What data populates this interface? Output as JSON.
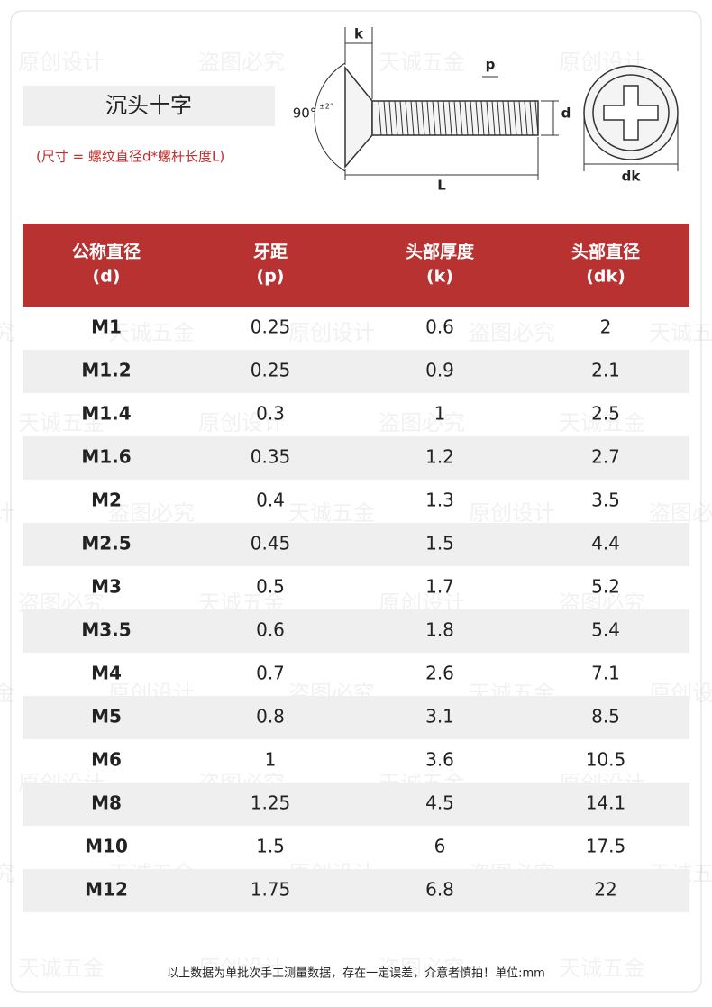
{
  "header": {
    "title": "沉头十字",
    "subtitle": "(尺寸 = 螺纹直径d*螺杆长度L)"
  },
  "diagram": {
    "angle": "90°",
    "tolerance": "±2°",
    "k": "k",
    "p": "p",
    "d": "d",
    "L": "L",
    "dk": "dk"
  },
  "watermarks": [
    "原创设计",
    "盗图必究",
    "天诚五金"
  ],
  "table": {
    "headers": [
      [
        "公称直径",
        "(d)"
      ],
      [
        "牙距",
        "(p)"
      ],
      [
        "头部厚度",
        "(k)"
      ],
      [
        "头部直径",
        "(dk)"
      ]
    ],
    "rows": [
      [
        "M1",
        "0.25",
        "0.6",
        "2"
      ],
      [
        "M1.2",
        "0.25",
        "0.9",
        "2.1"
      ],
      [
        "M1.4",
        "0.3",
        "1",
        "2.5"
      ],
      [
        "M1.6",
        "0.35",
        "1.2",
        "2.7"
      ],
      [
        "M2",
        "0.4",
        "1.3",
        "3.5"
      ],
      [
        "M2.5",
        "0.45",
        "1.5",
        "4.4"
      ],
      [
        "M3",
        "0.5",
        "1.7",
        "5.2"
      ],
      [
        "M3.5",
        "0.6",
        "1.8",
        "5.4"
      ],
      [
        "M4",
        "0.7",
        "2.6",
        "7.1"
      ],
      [
        "M5",
        "0.8",
        "3.1",
        "8.5"
      ],
      [
        "M6",
        "1",
        "3.6",
        "10.5"
      ],
      [
        "M8",
        "1.25",
        "4.5",
        "14.1"
      ],
      [
        "M10",
        "1.5",
        "6",
        "17.5"
      ],
      [
        "M12",
        "1.75",
        "6.8",
        "22"
      ]
    ]
  },
  "footer": "以上数据为单批次手工测量数据，存在一定误差，介意者慎拍！单位:mm"
}
